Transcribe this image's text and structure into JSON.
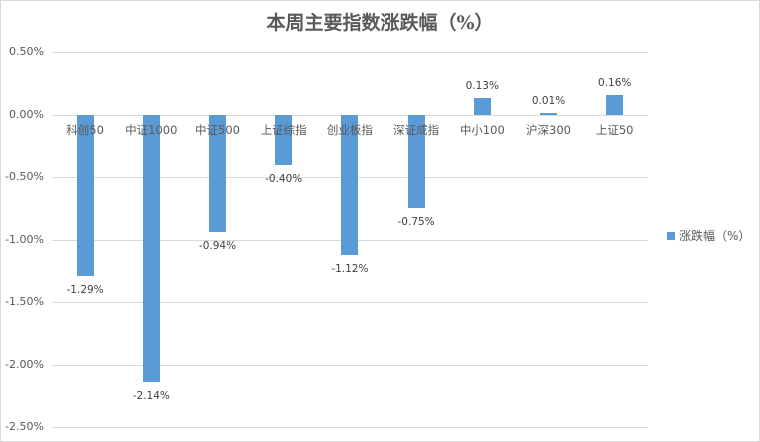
{
  "chart_data": {
    "type": "bar",
    "title": "本周主要指数涨跌幅（%）",
    "xlabel": "",
    "ylabel": "",
    "categories": [
      "科创50",
      "中证1000",
      "中证500",
      "上证综指",
      "创业板指",
      "深证成指",
      "中小100",
      "沪深300",
      "上证50"
    ],
    "series": [
      {
        "name": "涨跌幅（%）",
        "values": [
          -1.29,
          -2.14,
          -0.94,
          -0.4,
          -1.12,
          -0.75,
          0.13,
          0.01,
          0.16
        ],
        "color": "#5b9bd5"
      }
    ],
    "data_labels": [
      "-1.29%",
      "-2.14%",
      "-0.94%",
      "-0.40%",
      "-1.12%",
      "-0.75%",
      "0.13%",
      "0.01%",
      "0.16%"
    ],
    "ylim": [
      -2.5,
      0.5
    ],
    "yticks": [
      "0.50%",
      "0.00%",
      "-0.50%",
      "-1.00%",
      "-1.50%",
      "-2.00%",
      "-2.50%"
    ],
    "ytick_values": [
      0.5,
      0,
      -0.5,
      -1.0,
      -1.5,
      -2.0,
      -2.5
    ],
    "grid": true,
    "legend_position": "right"
  },
  "title": "本周主要指数涨跌幅（%）",
  "legend": {
    "label": "涨跌幅（%）"
  }
}
